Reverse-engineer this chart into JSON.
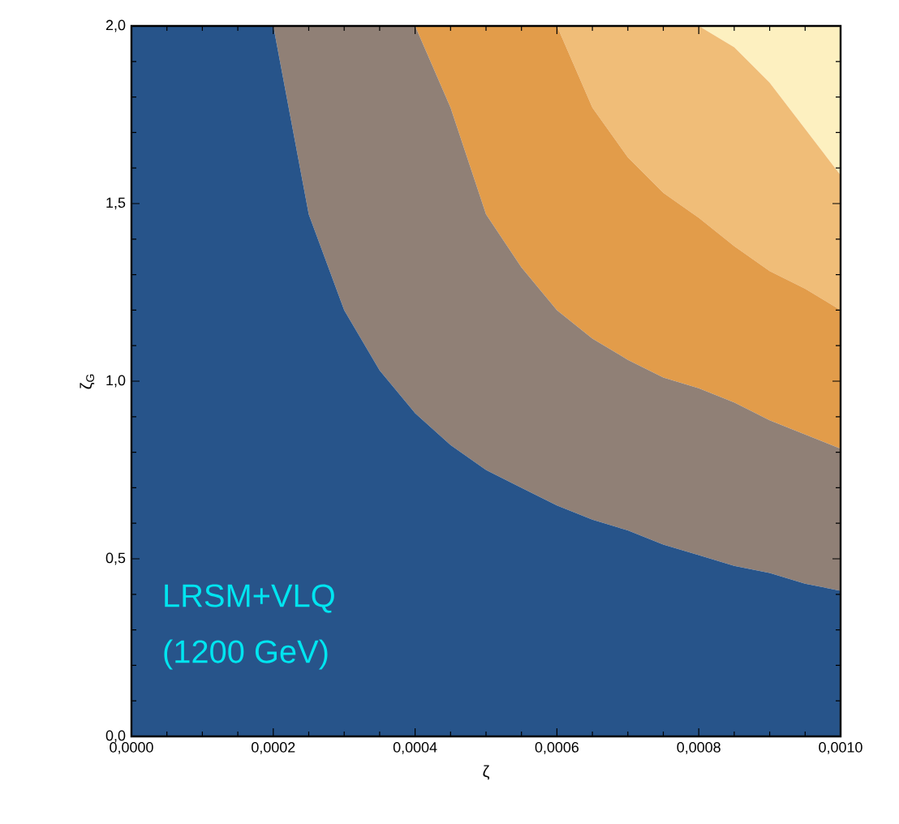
{
  "chart_data": {
    "type": "area",
    "stacked": true,
    "xlabel": "ζ",
    "ylabel": "ζ$_{G}$",
    "annotations": [
      "LRSM+VLQ",
      "(1200 GeV)"
    ],
    "xlim": [
      0,
      0.001
    ],
    "ylim": [
      0,
      2
    ],
    "xticks": [
      {
        "value": 0,
        "label": "0,0000"
      },
      {
        "value": 0.0002,
        "label": "0,0002"
      },
      {
        "value": 0.0004,
        "label": "0,0004"
      },
      {
        "value": 0.0006,
        "label": "0,0006"
      },
      {
        "value": 0.0008,
        "label": "0,0008"
      },
      {
        "value": 0.001,
        "label": "0,0010"
      }
    ],
    "yticks": [
      {
        "value": 0,
        "label": "0,0"
      },
      {
        "value": 0.5,
        "label": "0,5"
      },
      {
        "value": 1,
        "label": "1,0"
      },
      {
        "value": 1.5,
        "label": "1,5"
      },
      {
        "value": 2,
        "label": "2,0"
      }
    ],
    "grid": false,
    "x": [
      0,
      5e-05,
      0.0001,
      0.00015,
      0.0002,
      0.00025,
      0.0003,
      0.00035,
      0.0004,
      0.00045,
      0.0005,
      0.00055,
      0.0006,
      0.00065,
      0.0007,
      0.00075,
      0.0008,
      0.00085,
      0.0009,
      0.00095,
      0.001
    ],
    "series": [
      {
        "color": "#27548a",
        "values": [
          2,
          2,
          2,
          2,
          2,
          1.47,
          1.2,
          1.03,
          0.91,
          0.82,
          0.75,
          0.7,
          0.65,
          0.61,
          0.58,
          0.54,
          0.51,
          0.48,
          0.46,
          0.43,
          0.41
        ]
      },
      {
        "color": "#908076",
        "values": [
          0,
          0,
          0,
          0,
          0,
          0.53,
          0.8,
          0.97,
          1.09,
          0.95,
          0.72,
          0.62,
          0.55,
          0.51,
          0.48,
          0.47,
          0.47,
          0.46,
          0.43,
          0.42,
          0.4
        ]
      },
      {
        "color": "#e29c4a",
        "values": [
          0,
          0,
          0,
          0,
          0,
          0,
          0,
          0,
          0,
          0.23,
          0.53,
          0.68,
          0.8,
          0.65,
          0.57,
          0.52,
          0.48,
          0.44,
          0.42,
          0.41,
          0.39
        ]
      },
      {
        "color": "#f0bd78",
        "values": [
          0,
          0,
          0,
          0,
          0,
          0,
          0,
          0,
          0,
          0,
          0,
          0,
          0,
          0.23,
          0.37,
          0.47,
          0.54,
          0.56,
          0.53,
          0.45,
          0.38
        ]
      },
      {
        "color": "#fdf0c0",
        "values": [
          0,
          0,
          0,
          0,
          0,
          0,
          0,
          0,
          0,
          0,
          0,
          0,
          0,
          0,
          0,
          0,
          0,
          0.06,
          0.16,
          0.29,
          0.42
        ]
      }
    ]
  }
}
